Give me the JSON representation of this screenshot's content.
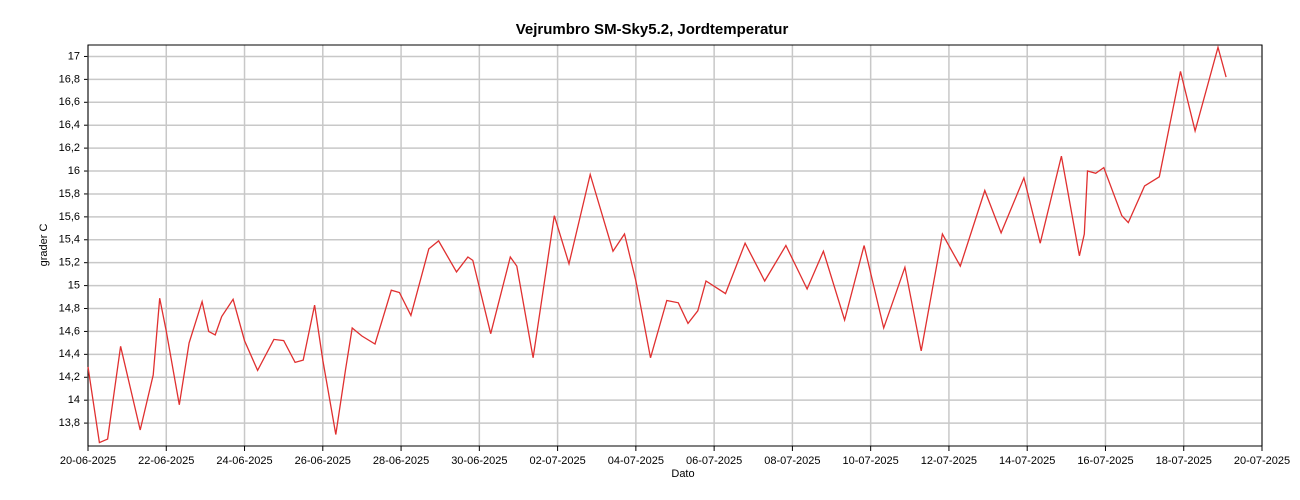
{
  "chart_data": {
    "type": "line",
    "title": "Vejrumbro SM-Sky5.2, Jordtemperatur",
    "x_label": "Dato",
    "y_label": "grader C",
    "color": "#e03030",
    "grid": true,
    "xlim": [
      "2025-06-20",
      "2025-07-20"
    ],
    "xticks": [
      {
        "value": "2025-06-20",
        "label": "20-06-2025"
      },
      {
        "value": "2025-06-22",
        "label": "22-06-2025"
      },
      {
        "value": "2025-06-24",
        "label": "24-06-2025"
      },
      {
        "value": "2025-06-26",
        "label": "26-06-2025"
      },
      {
        "value": "2025-06-28",
        "label": "28-06-2025"
      },
      {
        "value": "2025-06-30",
        "label": "30-06-2025"
      },
      {
        "value": "2025-07-02",
        "label": "02-07-2025"
      },
      {
        "value": "2025-07-04",
        "label": "04-07-2025"
      },
      {
        "value": "2025-07-06",
        "label": "06-07-2025"
      },
      {
        "value": "2025-07-08",
        "label": "08-07-2025"
      },
      {
        "value": "2025-07-10",
        "label": "10-07-2025"
      },
      {
        "value": "2025-07-12",
        "label": "12-07-2025"
      },
      {
        "value": "2025-07-14",
        "label": "14-07-2025"
      },
      {
        "value": "2025-07-16",
        "label": "16-07-2025"
      },
      {
        "value": "2025-07-18",
        "label": "18-07-2025"
      },
      {
        "value": "2025-07-20",
        "label": "20-07-2025"
      }
    ],
    "ylim": [
      13.6,
      17.1
    ],
    "yticks": [
      {
        "value": 13.8,
        "label": "13,8"
      },
      14,
      {
        "value": 14.2,
        "label": "14,2"
      },
      {
        "value": 14.4,
        "label": "14,4"
      },
      {
        "value": 14.6,
        "label": "14,6"
      },
      {
        "value": 14.8,
        "label": "14,8"
      },
      15,
      {
        "value": 15.2,
        "label": "15,2"
      },
      {
        "value": 15.4,
        "label": "15,4"
      },
      {
        "value": 15.6,
        "label": "15,6"
      },
      {
        "value": 15.8,
        "label": "15,8"
      },
      16,
      {
        "value": 16.2,
        "label": "16,2"
      },
      {
        "value": 16.4,
        "label": "16,4"
      },
      {
        "value": 16.6,
        "label": "16,6"
      },
      {
        "value": 16.8,
        "label": "16,8"
      },
      17
    ],
    "x": [
      "2025-06-20 00:00",
      "2025-06-20 07:00",
      "2025-06-20 12:00",
      "2025-06-20 20:00",
      "2025-06-21 08:00",
      "2025-06-21 16:00",
      "2025-06-21 20:00",
      "2025-06-22 00:00",
      "2025-06-22 08:00",
      "2025-06-22 14:00",
      "2025-06-22 22:00",
      "2025-06-23 02:00",
      "2025-06-23 06:00",
      "2025-06-23 10:00",
      "2025-06-23 17:00",
      "2025-06-24 00:00",
      "2025-06-24 08:00",
      "2025-06-24 18:00",
      "2025-06-25 00:00",
      "2025-06-25 07:00",
      "2025-06-25 12:00",
      "2025-06-25 19:00",
      "2025-06-26 00:00",
      "2025-06-26 08:00",
      "2025-06-26 14:00",
      "2025-06-26 18:00",
      "2025-06-27 00:00",
      "2025-06-27 08:00",
      "2025-06-27 18:00",
      "2025-06-27 23:00",
      "2025-06-28 06:00",
      "2025-06-28 17:00",
      "2025-06-28 23:00",
      "2025-06-29 10:00",
      "2025-06-29 17:00",
      "2025-06-29 20:00",
      "2025-06-30 07:00",
      "2025-06-30 19:00",
      "2025-06-30 23:00",
      "2025-07-01 09:00",
      "2025-07-01 22:00",
      "2025-07-02 07:00",
      "2025-07-02 20:00",
      "2025-07-03 10:00",
      "2025-07-03 17:00",
      "2025-07-04 00:00",
      "2025-07-04 09:00",
      "2025-07-04 19:00",
      "2025-07-05 02:00",
      "2025-07-05 08:00",
      "2025-07-05 14:00",
      "2025-07-05 19:00",
      "2025-07-06 07:00",
      "2025-07-06 19:00",
      "2025-07-07 07:00",
      "2025-07-07 20:00",
      "2025-07-08 09:00",
      "2025-07-08 19:00",
      "2025-07-09 08:00",
      "2025-07-09 20:00",
      "2025-07-10 08:00",
      "2025-07-10 21:00",
      "2025-07-11 07:00",
      "2025-07-11 20:00",
      "2025-07-12 07:00",
      "2025-07-12 22:00",
      "2025-07-13 08:00",
      "2025-07-13 22:00",
      "2025-07-14 08:00",
      "2025-07-14 21:00",
      "2025-07-15 08:00",
      "2025-07-15 11:00",
      "2025-07-15 13:00",
      "2025-07-15 18:00",
      "2025-07-15 23:00",
      "2025-07-16 10:00",
      "2025-07-16 14:00",
      "2025-07-17 00:00",
      "2025-07-17 09:00",
      "2025-07-17 22:00",
      "2025-07-18 07:00",
      "2025-07-18 21:00",
      "2025-07-19 02:00"
    ],
    "values": [
      14.29,
      13.63,
      13.66,
      14.47,
      13.74,
      14.22,
      14.89,
      14.6,
      13.96,
      14.5,
      14.86,
      14.6,
      14.57,
      14.73,
      14.88,
      14.52,
      14.26,
      14.53,
      14.52,
      14.33,
      14.35,
      14.83,
      14.35,
      13.7,
      14.27,
      14.63,
      14.56,
      14.49,
      14.96,
      14.94,
      14.74,
      15.32,
      15.39,
      15.12,
      15.25,
      15.22,
      14.58,
      15.25,
      15.17,
      14.37,
      15.61,
      15.19,
      15.97,
      15.3,
      15.45,
      15.04,
      14.37,
      14.87,
      14.85,
      14.67,
      14.78,
      15.04,
      14.93,
      15.37,
      15.04,
      15.35,
      14.97,
      15.3,
      14.7,
      15.35,
      14.63,
      15.16,
      14.43,
      15.45,
      15.17,
      15.83,
      15.46,
      15.94,
      15.37,
      16.13,
      15.26,
      15.45,
      16.0,
      15.98,
      16.03,
      15.61,
      15.55,
      15.87,
      15.95,
      16.87,
      16.35,
      17.08,
      16.82
    ]
  }
}
